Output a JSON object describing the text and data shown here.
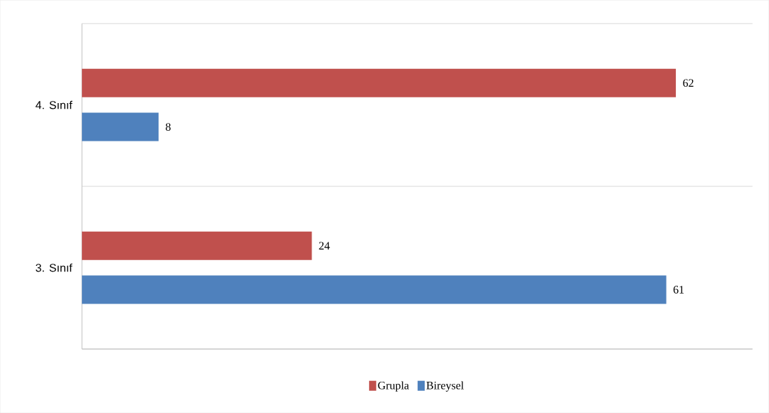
{
  "chart_data": {
    "type": "bar",
    "orientation": "horizontal",
    "categories": [
      "4. Sınıf",
      "3. Sınıf"
    ],
    "series": [
      {
        "name": "Grupla",
        "color": "#c0504d",
        "values": [
          62,
          24
        ]
      },
      {
        "name": "Bireysel",
        "color": "#4f81bd",
        "values": [
          8,
          61
        ]
      }
    ],
    "xlim": [
      0,
      70
    ],
    "data_labels": true,
    "grid": "y",
    "legend": "bottom"
  }
}
